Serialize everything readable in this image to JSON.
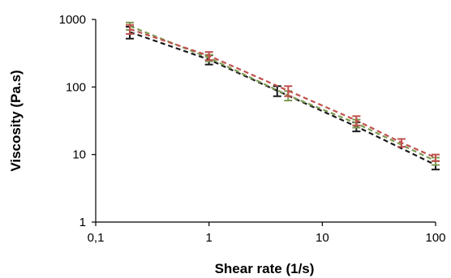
{
  "chart_data": {
    "type": "line",
    "title": "",
    "xlabel": "Shear rate (1/s)",
    "ylabel": "Viscosity (Pa.s)",
    "xscale": "log",
    "yscale": "log",
    "xlim": [
      0.1,
      100
    ],
    "ylim": [
      1,
      1000
    ],
    "x_ticks": [
      0.1,
      1,
      10,
      100
    ],
    "x_tick_labels": [
      "0,1",
      "1",
      "10",
      "100"
    ],
    "y_ticks": [
      1,
      10,
      100,
      1000
    ],
    "y_tick_labels": [
      "1",
      "10",
      "100",
      "1000"
    ],
    "grid": false,
    "legend": "none",
    "series": [
      {
        "color": "#1a1a1a",
        "x": [
          0.2,
          1,
          4,
          20,
          100
        ],
        "y": [
          650,
          255,
          88,
          26,
          7
        ],
        "err": [
          130,
          40,
          15,
          4,
          1
        ]
      },
      {
        "color": "#7d9b52",
        "x": [
          0.2,
          1,
          5,
          20,
          100
        ],
        "y": [
          800,
          270,
          75,
          29,
          8
        ],
        "err": [
          100,
          30,
          12,
          4,
          1
        ]
      },
      {
        "color": "#c0504d",
        "x": [
          0.2,
          1,
          5,
          20,
          50,
          100
        ],
        "y": [
          720,
          290,
          88,
          32,
          15,
          9
        ],
        "err": [
          110,
          40,
          15,
          5,
          2,
          1
        ]
      }
    ]
  }
}
